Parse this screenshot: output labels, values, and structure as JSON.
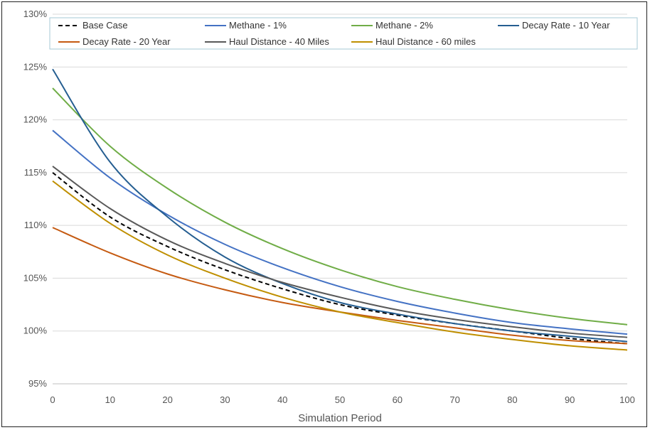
{
  "chart_data": {
    "type": "line",
    "title": "",
    "xlabel": "Simulation Period",
    "ylabel": "",
    "xlim": [
      0,
      100
    ],
    "ylim": [
      95,
      130
    ],
    "x_ticks": [
      0,
      10,
      20,
      30,
      40,
      50,
      60,
      70,
      80,
      90,
      100
    ],
    "y_ticks": [
      95,
      100,
      105,
      110,
      115,
      120,
      125,
      130
    ],
    "y_tick_labels": [
      "95%",
      "100%",
      "105%",
      "110%",
      "115%",
      "120%",
      "125%",
      "130%"
    ],
    "grid": "horizontal",
    "legend_position": "top",
    "x": [
      0,
      10,
      20,
      30,
      40,
      50,
      60,
      70,
      80,
      90,
      100
    ],
    "series": [
      {
        "name": "Base Case",
        "color": "#000000",
        "dashed": true,
        "values": [
          115.0,
          110.8,
          108.0,
          105.8,
          104.0,
          102.5,
          101.5,
          100.7,
          100.0,
          99.3,
          98.8
        ]
      },
      {
        "name": "Methane - 1%",
        "color": "#4472C4",
        "dashed": false,
        "values": [
          119.0,
          114.5,
          111.0,
          108.2,
          106.0,
          104.2,
          102.8,
          101.7,
          100.8,
          100.2,
          99.7
        ]
      },
      {
        "name": "Methane - 2%",
        "color": "#70AD47",
        "dashed": false,
        "values": [
          123.0,
          117.5,
          113.5,
          110.3,
          107.8,
          105.8,
          104.2,
          103.0,
          102.0,
          101.2,
          100.6
        ]
      },
      {
        "name": "Decay Rate - 10 Year",
        "color": "#255E91",
        "dashed": false,
        "values": [
          124.8,
          116.0,
          110.8,
          107.0,
          104.5,
          102.7,
          101.6,
          100.7,
          100.0,
          99.5,
          99.0
        ]
      },
      {
        "name": "Decay Rate - 20 Year",
        "color": "#C55A11",
        "dashed": false,
        "values": [
          109.8,
          107.4,
          105.4,
          103.9,
          102.7,
          101.8,
          101.0,
          100.3,
          99.6,
          99.1,
          98.8
        ]
      },
      {
        "name": "Haul Distance - 40 Miles",
        "color": "#595959",
        "dashed": false,
        "values": [
          115.6,
          111.6,
          108.6,
          106.4,
          104.6,
          103.2,
          102.0,
          101.1,
          100.4,
          99.8,
          99.4
        ]
      },
      {
        "name": "Haul Distance - 60 miles",
        "color": "#BF8F00",
        "dashed": false,
        "values": [
          114.2,
          110.2,
          107.2,
          105.0,
          103.2,
          101.8,
          100.8,
          99.9,
          99.2,
          98.6,
          98.2
        ]
      }
    ]
  }
}
